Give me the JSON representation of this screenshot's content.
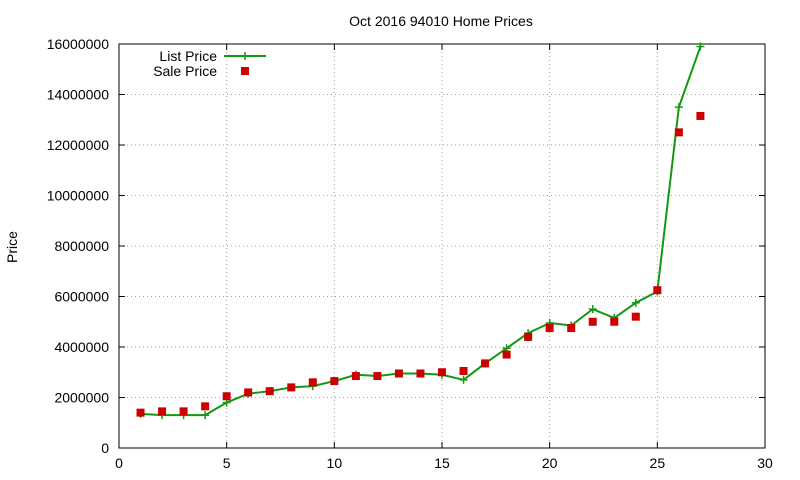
{
  "colors": {
    "list_price": "#119911",
    "sale_price": "#cc0000",
    "grid": "#a0a0a0",
    "frame": "#000000",
    "background": "#ffffff"
  },
  "chart_data": {
    "type": "line",
    "title": "Oct 2016 94010 Home Prices",
    "xlabel": "",
    "ylabel": "Price",
    "xlim": [
      0,
      30
    ],
    "ylim": [
      0,
      16000000
    ],
    "xticks": [
      0,
      5,
      10,
      15,
      20,
      25,
      30
    ],
    "yticks": [
      0,
      2000000,
      4000000,
      6000000,
      8000000,
      10000000,
      12000000,
      14000000,
      16000000
    ],
    "x_tick_labels": [
      "0",
      "5",
      "10",
      "15",
      "20",
      "25",
      "30"
    ],
    "y_tick_labels": [
      "0",
      "2000000",
      "4000000",
      "6000000",
      "8000000",
      "10000000",
      "12000000",
      "14000000",
      "16000000"
    ],
    "grid": true,
    "legend_position": "top-left",
    "series": [
      {
        "name": "List Price",
        "style": "line-with-plus-markers",
        "color": "#119911",
        "x": [
          1,
          2,
          3,
          4,
          5,
          6,
          7,
          8,
          9,
          10,
          11,
          12,
          13,
          14,
          15,
          16,
          17,
          18,
          19,
          20,
          21,
          22,
          23,
          24,
          25,
          26,
          27
        ],
        "y": [
          1350000,
          1300000,
          1300000,
          1300000,
          1800000,
          2150000,
          2250000,
          2400000,
          2450000,
          2650000,
          2900000,
          2850000,
          2950000,
          2950000,
          2900000,
          2700000,
          3350000,
          3950000,
          4550000,
          4950000,
          4850000,
          5500000,
          5150000,
          5750000,
          6200000,
          13500000,
          15900000
        ]
      },
      {
        "name": "Sale Price",
        "style": "square-markers",
        "color": "#cc0000",
        "x": [
          1,
          2,
          3,
          4,
          5,
          6,
          7,
          8,
          9,
          10,
          11,
          12,
          13,
          14,
          15,
          16,
          17,
          18,
          19,
          20,
          21,
          22,
          23,
          24,
          25,
          26,
          27
        ],
        "y": [
          1400000,
          1450000,
          1450000,
          1650000,
          2050000,
          2200000,
          2250000,
          2400000,
          2600000,
          2650000,
          2850000,
          2850000,
          2950000,
          2950000,
          3000000,
          3050000,
          3350000,
          3700000,
          4400000,
          4750000,
          4750000,
          5000000,
          5000000,
          5200000,
          6250000,
          12500000,
          13150000
        ]
      }
    ]
  }
}
